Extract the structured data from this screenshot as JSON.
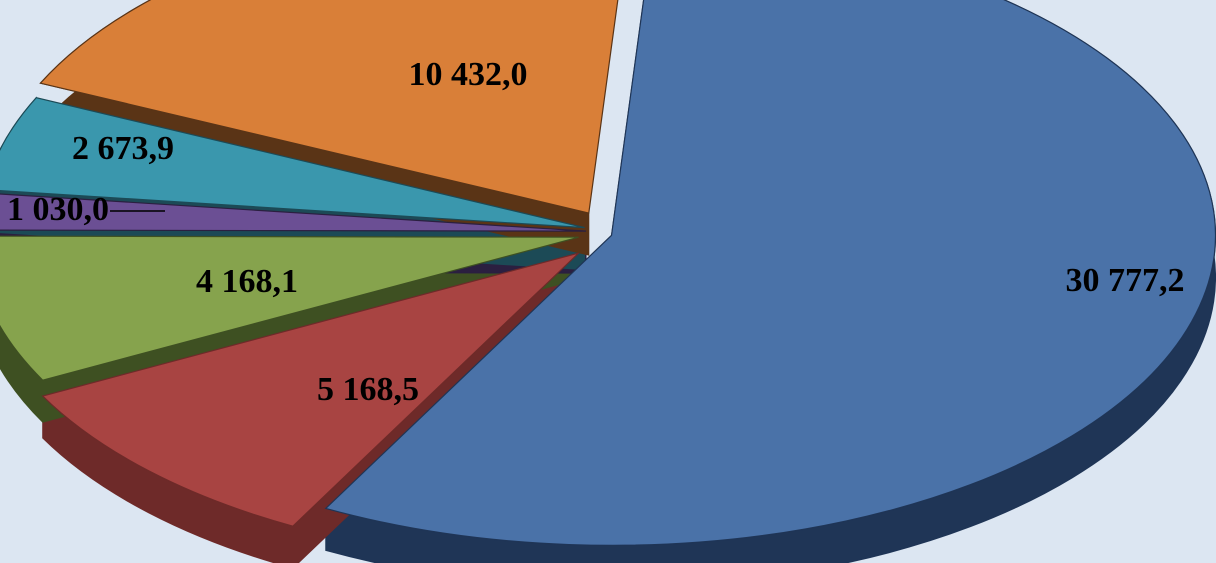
{
  "chart_data": {
    "type": "pie",
    "title": "",
    "style": "3d-exploded",
    "legend": "none",
    "slices": [
      {
        "label": "30 777,2",
        "value": 30777.2,
        "color": "#4a72a8",
        "side_color": "#1f3556"
      },
      {
        "label": "5 168,5",
        "value": 5168.5,
        "color": "#a84442",
        "side_color": "#6e2a29"
      },
      {
        "label": "4 168,1",
        "value": 4168.1,
        "color": "#86a34d",
        "side_color": "#3e5022"
      },
      {
        "label": "1 030,0",
        "value": 1030.0,
        "color": "#6b4f94",
        "side_color": "#2b1f40"
      },
      {
        "label": "2 673,9",
        "value": 2673.9,
        "color": "#3a97ad",
        "side_color": "#1c4a56"
      },
      {
        "label": "10 432,0",
        "value": 10432.0,
        "color": "#d97f38",
        "side_color": "#5a3416"
      }
    ]
  }
}
